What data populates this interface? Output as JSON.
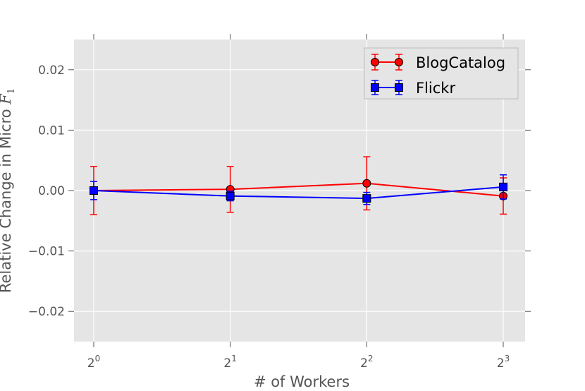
{
  "chart_data": {
    "type": "line",
    "x": [
      1,
      2,
      4,
      8
    ],
    "x_tick_labels": [
      {
        "base": "2",
        "exp": "0"
      },
      {
        "base": "2",
        "exp": "1"
      },
      {
        "base": "2",
        "exp": "2"
      },
      {
        "base": "2",
        "exp": "3"
      }
    ],
    "x_scale": "log2",
    "xlabel": "# of Workers",
    "ylabel": "Relative Change in Micro ",
    "ylabel_math": "F",
    "ylabel_math_sub": "1",
    "ylim": [
      -0.025,
      0.025
    ],
    "y_ticks": [
      0.02,
      0.01,
      0.0,
      -0.01,
      -0.02
    ],
    "y_tick_labels": [
      "0.02",
      "0.01",
      "0.00",
      "−0.01",
      "−0.02"
    ],
    "grid": true,
    "legend_position": "top-right",
    "series": [
      {
        "name": "BlogCatalog",
        "color": "#ff0000",
        "marker": "circle",
        "values": [
          0.0,
          0.0002,
          0.0012,
          -0.0009
        ],
        "errors": [
          0.004,
          0.0038,
          0.0044,
          0.003
        ]
      },
      {
        "name": "Flickr",
        "color": "#0000ff",
        "marker": "square",
        "values": [
          0.0,
          -0.0009,
          -0.0013,
          0.0006
        ],
        "errors": [
          0.0015,
          0.0008,
          0.001,
          0.002
        ]
      }
    ]
  }
}
